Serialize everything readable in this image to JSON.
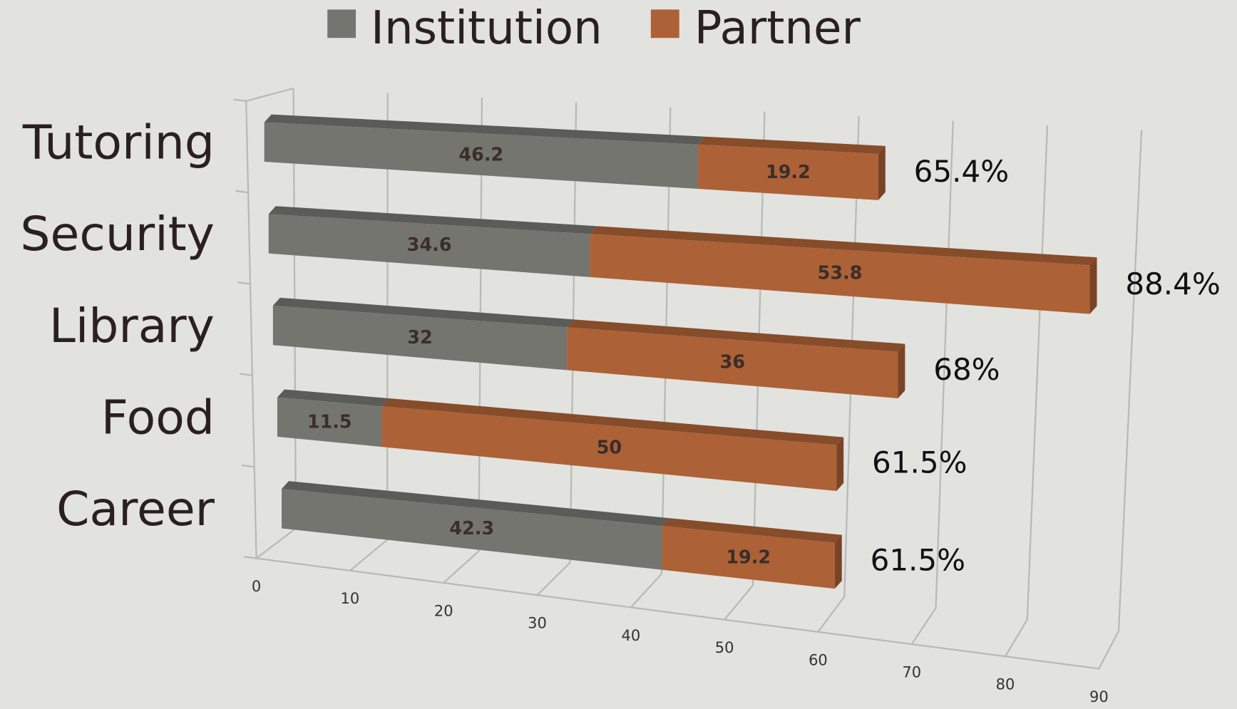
{
  "chart_data": {
    "type": "bar3d_stacked_horizontal",
    "categories": [
      "Tutoring",
      "Security",
      "Library",
      "Food",
      "Career"
    ],
    "series": [
      {
        "name": "Institution",
        "color": "#75756f",
        "values": [
          46.2,
          34.6,
          32,
          11.5,
          42.3
        ]
      },
      {
        "name": "Partner",
        "color": "#ad6136",
        "values": [
          19.2,
          53.8,
          36,
          50,
          19.2
        ]
      }
    ],
    "total_labels": [
      "65.4%",
      "88.4%",
      "68%",
      "61.5%",
      "61.5%"
    ],
    "xlim": [
      0,
      90
    ],
    "xticks": [
      0,
      10,
      20,
      30,
      40,
      50,
      60,
      70,
      80,
      90
    ],
    "grid": true,
    "legend": "top"
  }
}
